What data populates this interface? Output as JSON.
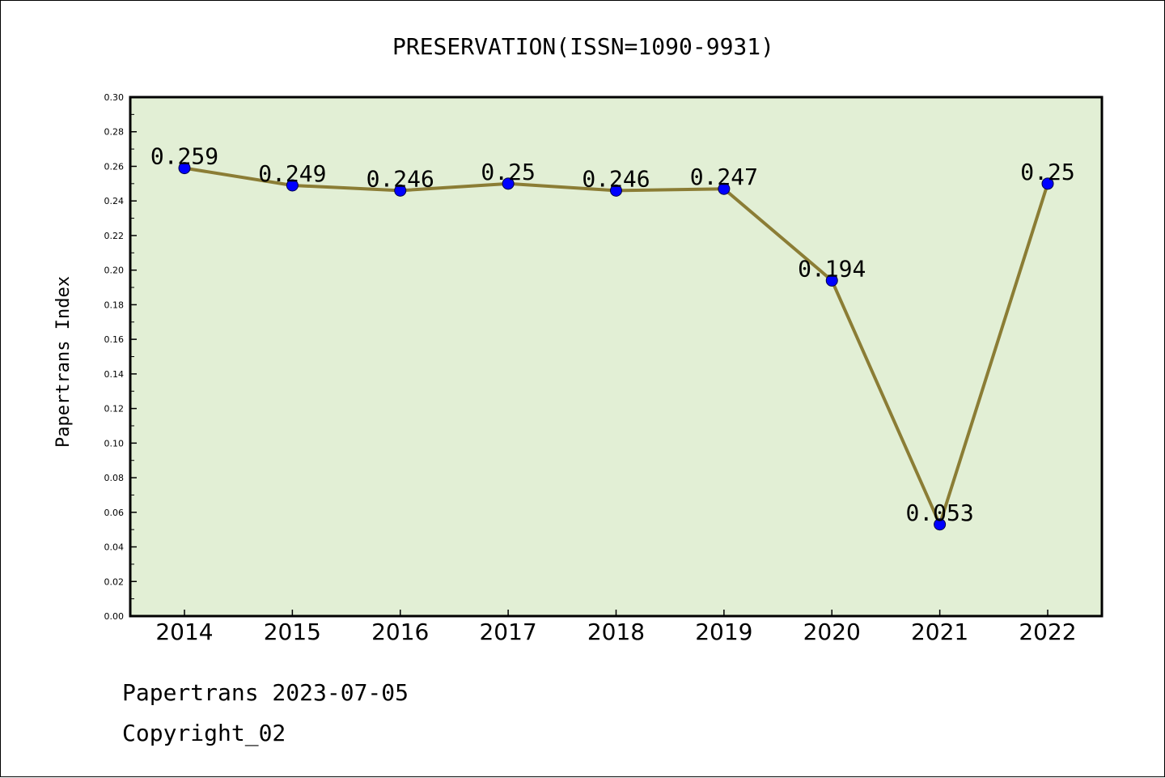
{
  "chart_data": {
    "type": "line",
    "title": "PRESERVATION(ISSN=1090-9931)",
    "xlabel": "",
    "ylabel": "Papertrans Index",
    "categories": [
      "2014",
      "2015",
      "2016",
      "2017",
      "2018",
      "2019",
      "2020",
      "2021",
      "2022"
    ],
    "series": [
      {
        "values": [
          0.259,
          0.249,
          0.246,
          0.25,
          0.246,
          0.247,
          0.194,
          0.053,
          0.25
        ],
        "data_labels": [
          "0.259",
          "0.249",
          "0.246",
          "0.25",
          "0.246",
          "0.247",
          "0.194",
          "0.053",
          "0.25"
        ],
        "line_color": "#8B7D35",
        "marker_color": "#0000FF"
      }
    ],
    "ylim": [
      0,
      0.3
    ],
    "yticks": [
      "0.00",
      "0.02",
      "0.04",
      "0.06",
      "0.08",
      "0.10",
      "0.12",
      "0.14",
      "0.16",
      "0.18",
      "0.20",
      "0.22",
      "0.24",
      "0.26",
      "0.28",
      "0.30"
    ],
    "grid": false,
    "legend": "none",
    "plot_background": "#E2EFD5"
  },
  "footer": {
    "line1": "Papertrans 2023-07-05",
    "line2": "Copyright_02"
  }
}
